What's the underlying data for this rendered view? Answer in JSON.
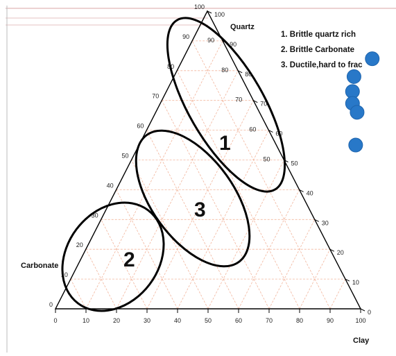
{
  "chart_data": {
    "type": "scatter",
    "subtype": "ternary",
    "axes": {
      "top": {
        "label": "Quartz"
      },
      "left": {
        "label": "Carbonate"
      },
      "right": {
        "label": "Clay"
      }
    },
    "ticks": [
      "0",
      "10",
      "20",
      "30",
      "40",
      "50",
      "60",
      "70",
      "80",
      "90",
      "100"
    ],
    "grid": true,
    "grid_color": "#f2b59c",
    "legend": [
      "1. Brittle quartz rich",
      "2. Brittle Carbonate",
      "3. Ductile,hard to frac"
    ],
    "zones": [
      {
        "label": "1"
      },
      {
        "label": "2"
      },
      {
        "label": "3"
      }
    ],
    "points_color": "#2878c8",
    "points": [
      {
        "quartz": 84,
        "clay": 62,
        "carbonate": -46
      },
      {
        "quartz": 78,
        "clay": 59,
        "carbonate": -37
      },
      {
        "quartz": 73,
        "clay": 61,
        "carbonate": -34
      },
      {
        "quartz": 69,
        "clay": 63,
        "carbonate": -32
      },
      {
        "quartz": 66,
        "clay": 66,
        "carbonate": -32
      },
      {
        "quartz": 55,
        "clay": 71,
        "carbonate": -26
      }
    ]
  }
}
